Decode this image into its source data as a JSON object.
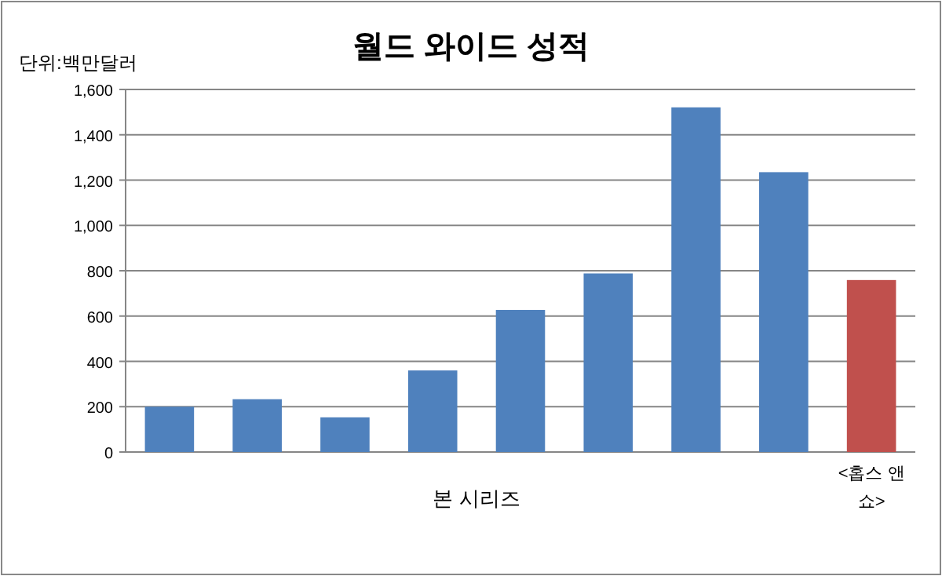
{
  "chart_data": {
    "type": "bar",
    "title": "월드 와이드 성적",
    "xlabel": "본 시리즈",
    "annotations": [
      "단위:백만달러"
    ],
    "categories": [
      null,
      null,
      null,
      null,
      null,
      null,
      null,
      null,
      "<홉스 앤 쇼>"
    ],
    "values": [
      200,
      233,
      153,
      360,
      627,
      788,
      1521,
      1235,
      759
    ],
    "colors": [
      "#4f81bd",
      "#4f81bd",
      "#4f81bd",
      "#4f81bd",
      "#4f81bd",
      "#4f81bd",
      "#4f81bd",
      "#4f81bd",
      "#c0504d"
    ],
    "ylim": [
      0,
      1600
    ],
    "yticks": [
      0,
      {
        "value": 200,
        "label": "200"
      },
      {
        "value": 400,
        "label": "400"
      },
      {
        "value": 600,
        "label": "600"
      },
      {
        "value": 800,
        "label": "800"
      },
      {
        "value": 1000,
        "label": "1,000"
      },
      {
        "value": 1200,
        "label": "1,200"
      },
      {
        "value": 1400,
        "label": "1,400"
      },
      {
        "value": 1600,
        "label": "1,600"
      }
    ],
    "grid": "y"
  }
}
